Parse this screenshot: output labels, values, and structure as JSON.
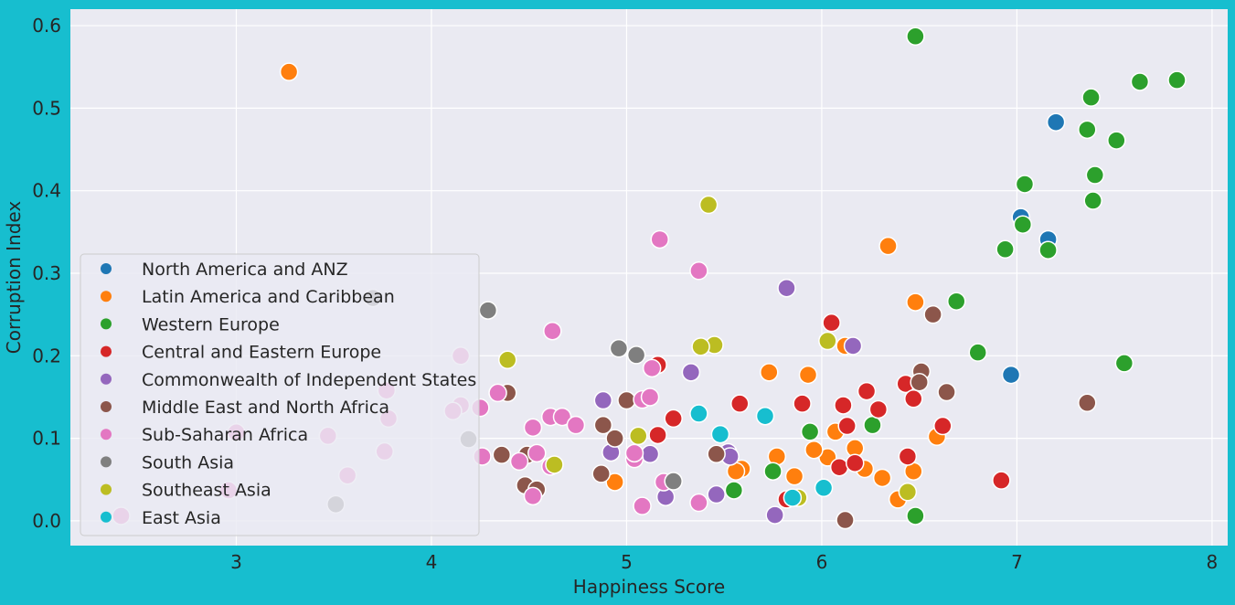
{
  "chart_data": {
    "type": "scatter",
    "title": "",
    "xlabel": "Happiness Score",
    "ylabel": "Corruption Index",
    "xlim": [
      2.15,
      8.08
    ],
    "ylim": [
      -0.03,
      0.62
    ],
    "xticks": [
      3,
      4,
      5,
      6,
      7,
      8
    ],
    "yticks": [
      0.0,
      0.1,
      0.2,
      0.3,
      0.4,
      0.5,
      0.6
    ],
    "grid": true,
    "legend": "lower-left",
    "series": [
      {
        "name": "North America and ANZ",
        "color": "#1f77b4",
        "points": [
          [
            7.2,
            0.483
          ],
          [
            7.02,
            0.368
          ],
          [
            7.16,
            0.341
          ],
          [
            6.97,
            0.177
          ]
        ]
      },
      {
        "name": "Latin America and Caribbean",
        "color": "#ff7f0e",
        "points": [
          [
            3.27,
            0.544
          ],
          [
            6.34,
            0.333
          ],
          [
            6.48,
            0.265
          ],
          [
            6.12,
            0.212
          ],
          [
            5.73,
            0.18
          ],
          [
            5.93,
            0.177
          ],
          [
            6.07,
            0.108
          ],
          [
            6.59,
            0.102
          ],
          [
            5.77,
            0.078
          ],
          [
            6.17,
            0.088
          ],
          [
            6.03,
            0.077
          ],
          [
            6.22,
            0.063
          ],
          [
            5.59,
            0.063
          ],
          [
            5.56,
            0.06
          ],
          [
            6.47,
            0.06
          ],
          [
            5.86,
            0.054
          ],
          [
            6.31,
            0.052
          ],
          [
            4.94,
            0.047
          ],
          [
            6.39,
            0.026
          ],
          [
            5.96,
            0.086
          ]
        ]
      },
      {
        "name": "Western Europe",
        "color": "#2ca02c",
        "points": [
          [
            6.48,
            0.587
          ],
          [
            7.82,
            0.534
          ],
          [
            7.63,
            0.532
          ],
          [
            7.38,
            0.513
          ],
          [
            7.36,
            0.474
          ],
          [
            7.51,
            0.461
          ],
          [
            7.4,
            0.419
          ],
          [
            7.04,
            0.408
          ],
          [
            7.39,
            0.388
          ],
          [
            7.03,
            0.359
          ],
          [
            6.94,
            0.329
          ],
          [
            7.16,
            0.328
          ],
          [
            6.69,
            0.266
          ],
          [
            6.8,
            0.204
          ],
          [
            7.55,
            0.191
          ],
          [
            5.94,
            0.108
          ],
          [
            6.26,
            0.116
          ],
          [
            5.75,
            0.06
          ],
          [
            5.55,
            0.037
          ],
          [
            6.48,
            0.006
          ]
        ]
      },
      {
        "name": "Central and Eastern Europe",
        "color": "#d62728",
        "points": [
          [
            6.05,
            0.24
          ],
          [
            5.16,
            0.189
          ],
          [
            5.58,
            0.142
          ],
          [
            5.9,
            0.142
          ],
          [
            6.11,
            0.14
          ],
          [
            6.23,
            0.157
          ],
          [
            6.29,
            0.135
          ],
          [
            6.43,
            0.166
          ],
          [
            6.47,
            0.148
          ],
          [
            5.24,
            0.124
          ],
          [
            5.16,
            0.104
          ],
          [
            6.13,
            0.115
          ],
          [
            6.62,
            0.115
          ],
          [
            6.09,
            0.065
          ],
          [
            6.17,
            0.07
          ],
          [
            6.44,
            0.078
          ],
          [
            5.82,
            0.026
          ],
          [
            6.92,
            0.049
          ]
        ]
      },
      {
        "name": "Commonwealth of Independent States",
        "color": "#9467bd",
        "points": [
          [
            5.82,
            0.282
          ],
          [
            6.16,
            0.212
          ],
          [
            5.33,
            0.18
          ],
          [
            4.88,
            0.146
          ],
          [
            4.92,
            0.083
          ],
          [
            5.12,
            0.081
          ],
          [
            5.52,
            0.083
          ],
          [
            5.53,
            0.078
          ],
          [
            5.2,
            0.029
          ],
          [
            5.46,
            0.032
          ],
          [
            5.76,
            0.007
          ]
        ]
      },
      {
        "name": "Middle East and North Africa",
        "color": "#8c564b",
        "points": [
          [
            6.57,
            0.25
          ],
          [
            6.51,
            0.181
          ],
          [
            6.5,
            0.168
          ],
          [
            6.64,
            0.156
          ],
          [
            4.39,
            0.155
          ],
          [
            5.0,
            0.146
          ],
          [
            7.36,
            0.143
          ],
          [
            4.88,
            0.116
          ],
          [
            4.94,
            0.1
          ],
          [
            4.36,
            0.08
          ],
          [
            4.49,
            0.08
          ],
          [
            5.46,
            0.081
          ],
          [
            4.87,
            0.057
          ],
          [
            4.48,
            0.043
          ],
          [
            4.54,
            0.038
          ],
          [
            6.12,
            0.001
          ]
        ]
      },
      {
        "name": "Sub-Saharan Africa",
        "color": "#e377c2",
        "points": [
          [
            5.17,
            0.341
          ],
          [
            5.37,
            0.303
          ],
          [
            4.62,
            0.23
          ],
          [
            4.15,
            0.2
          ],
          [
            5.13,
            0.185
          ],
          [
            3.77,
            0.158
          ],
          [
            4.34,
            0.155
          ],
          [
            5.08,
            0.147
          ],
          [
            5.12,
            0.15
          ],
          [
            4.15,
            0.14
          ],
          [
            4.25,
            0.137
          ],
          [
            4.11,
            0.133
          ],
          [
            3.78,
            0.124
          ],
          [
            4.61,
            0.126
          ],
          [
            4.67,
            0.126
          ],
          [
            4.74,
            0.116
          ],
          [
            4.52,
            0.113
          ],
          [
            3.0,
            0.107
          ],
          [
            3.47,
            0.103
          ],
          [
            3.76,
            0.084
          ],
          [
            4.54,
            0.082
          ],
          [
            4.26,
            0.078
          ],
          [
            5.04,
            0.075
          ],
          [
            4.45,
            0.072
          ],
          [
            4.61,
            0.066
          ],
          [
            5.04,
            0.082
          ],
          [
            5.19,
            0.047
          ],
          [
            3.57,
            0.055
          ],
          [
            4.52,
            0.03
          ],
          [
            5.08,
            0.018
          ],
          [
            5.37,
            0.022
          ],
          [
            2.96,
            0.037
          ],
          [
            2.41,
            0.006
          ]
        ]
      },
      {
        "name": "South Asia",
        "color": "#7f7f7f",
        "points": [
          [
            3.7,
            0.27
          ],
          [
            4.29,
            0.255
          ],
          [
            4.96,
            0.209
          ],
          [
            5.05,
            0.201
          ],
          [
            4.19,
            0.099
          ],
          [
            5.24,
            0.048
          ],
          [
            3.51,
            0.02
          ]
        ]
      },
      {
        "name": "Southeast Asia",
        "color": "#bcbd22",
        "points": [
          [
            5.42,
            0.383
          ],
          [
            4.39,
            0.195
          ],
          [
            5.45,
            0.213
          ],
          [
            5.38,
            0.211
          ],
          [
            6.03,
            0.218
          ],
          [
            5.06,
            0.103
          ],
          [
            4.63,
            0.068
          ],
          [
            6.44,
            0.035
          ],
          [
            5.88,
            0.028
          ]
        ]
      },
      {
        "name": "East Asia",
        "color": "#17becf",
        "points": [
          [
            5.37,
            0.13
          ],
          [
            5.48,
            0.105
          ],
          [
            5.71,
            0.127
          ],
          [
            6.01,
            0.04
          ],
          [
            5.85,
            0.028
          ]
        ]
      }
    ]
  }
}
